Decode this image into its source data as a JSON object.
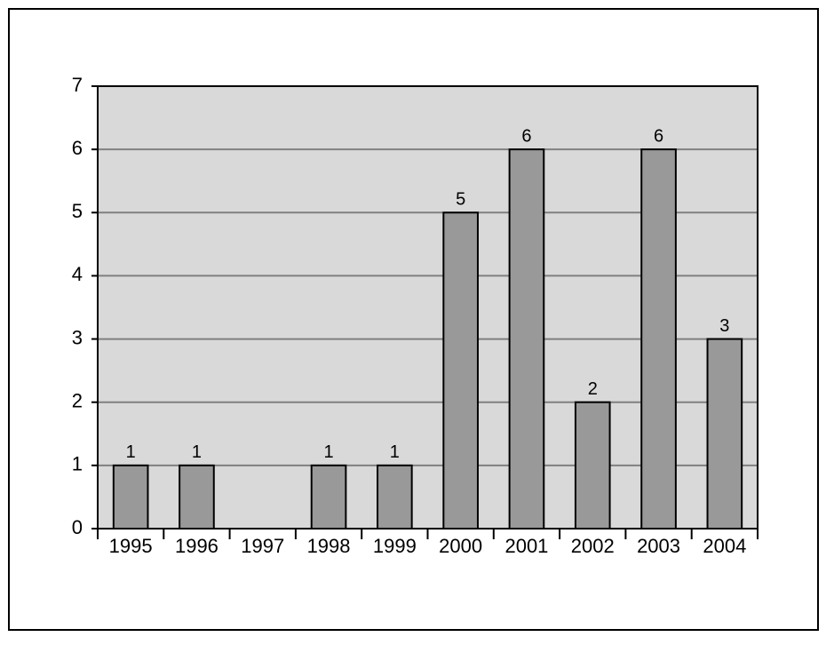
{
  "chart_data": {
    "type": "bar",
    "categories": [
      "1995",
      "1996",
      "1997",
      "1998",
      "1999",
      "2000",
      "2001",
      "2002",
      "2003",
      "2004"
    ],
    "values": [
      1,
      1,
      null,
      1,
      1,
      5,
      6,
      2,
      6,
      3
    ],
    "color": "#999999",
    "ylim": [
      0,
      7
    ],
    "yticks": [
      0,
      1,
      2,
      3,
      4,
      5,
      6,
      7
    ],
    "grid": true
  }
}
